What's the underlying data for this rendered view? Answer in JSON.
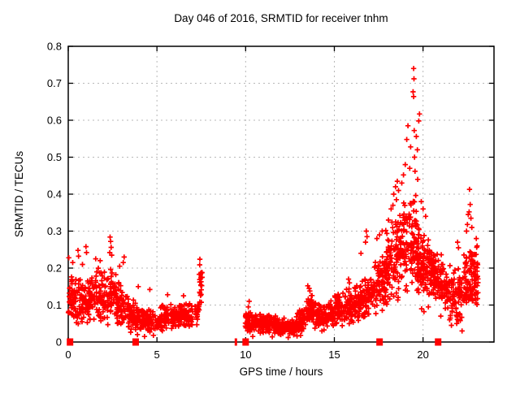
{
  "window": {
    "background": "#ffffff"
  },
  "chart_data": {
    "type": "scatter",
    "title": "Day 046 of 2016, SRMTID for receiver tnhm",
    "xlabel": "GPS time / hours",
    "ylabel": "SRMTID / TECUs",
    "xlim": [
      0,
      24
    ],
    "ylim": [
      0,
      0.8
    ],
    "xticks": [
      0,
      5,
      10,
      15,
      20
    ],
    "yticks": [
      0,
      0.1,
      0.2,
      0.3,
      0.4,
      0.5,
      0.6,
      0.7,
      0.8
    ],
    "grid": true,
    "grid_style": "dashed",
    "grid_color": "#b8b8b8",
    "legend": "none",
    "marker": "plus",
    "point_color": "#ff0000",
    "axis_color": "#000000",
    "seed": 1337,
    "segments_format": [
      "x_start_hours",
      "x_end_hours",
      "n_points",
      "band_center_start",
      "band_center_end",
      "band_halfwidth_start",
      "band_halfwidth_end"
    ],
    "segments": [
      [
        0.0,
        0.5,
        55,
        0.125,
        0.12,
        0.075,
        0.075
      ],
      [
        0.5,
        1.2,
        75,
        0.115,
        0.115,
        0.075,
        0.075
      ],
      [
        1.2,
        2.1,
        95,
        0.12,
        0.125,
        0.08,
        0.085
      ],
      [
        2.1,
        2.7,
        60,
        0.13,
        0.12,
        0.09,
        0.08
      ],
      [
        2.7,
        3.4,
        75,
        0.105,
        0.09,
        0.065,
        0.06
      ],
      [
        3.4,
        4.1,
        70,
        0.075,
        0.06,
        0.05,
        0.04
      ],
      [
        4.1,
        5.1,
        95,
        0.06,
        0.06,
        0.035,
        0.035
      ],
      [
        5.1,
        6.2,
        100,
        0.065,
        0.07,
        0.04,
        0.04
      ],
      [
        6.2,
        7.1,
        85,
        0.07,
        0.075,
        0.04,
        0.04
      ],
      [
        7.1,
        7.38,
        25,
        0.075,
        0.08,
        0.035,
        0.04
      ],
      [
        7.38,
        7.55,
        22,
        0.17,
        0.17,
        0.075,
        0.075
      ],
      [
        9.98,
        10.7,
        70,
        0.055,
        0.055,
        0.035,
        0.03
      ],
      [
        10.7,
        11.7,
        110,
        0.052,
        0.048,
        0.03,
        0.028
      ],
      [
        11.7,
        12.8,
        115,
        0.042,
        0.04,
        0.025,
        0.024
      ],
      [
        12.8,
        13.4,
        60,
        0.05,
        0.07,
        0.03,
        0.04
      ],
      [
        13.4,
        14.0,
        70,
        0.09,
        0.08,
        0.05,
        0.045
      ],
      [
        14.0,
        15.0,
        100,
        0.07,
        0.075,
        0.04,
        0.04
      ],
      [
        15.0,
        16.1,
        115,
        0.085,
        0.1,
        0.05,
        0.055
      ],
      [
        16.1,
        17.1,
        110,
        0.105,
        0.13,
        0.055,
        0.07
      ],
      [
        17.1,
        17.9,
        95,
        0.14,
        0.17,
        0.075,
        0.09
      ],
      [
        17.9,
        18.65,
        105,
        0.2,
        0.24,
        0.11,
        0.13
      ],
      [
        18.65,
        19.65,
        130,
        0.27,
        0.27,
        0.14,
        0.14
      ],
      [
        19.65,
        20.4,
        115,
        0.22,
        0.2,
        0.11,
        0.1
      ],
      [
        20.4,
        21.25,
        115,
        0.195,
        0.16,
        0.075,
        0.075
      ],
      [
        21.25,
        22.3,
        105,
        0.13,
        0.13,
        0.08,
        0.085
      ],
      [
        22.3,
        23.1,
        115,
        0.175,
        0.17,
        0.1,
        0.09
      ]
    ],
    "outlier_points": [
      [
        0.03,
        0.228
      ],
      [
        0.25,
        0.215
      ],
      [
        0.55,
        0.248
      ],
      [
        0.58,
        0.232
      ],
      [
        0.8,
        0.21
      ],
      [
        1.0,
        0.258
      ],
      [
        1.03,
        0.242
      ],
      [
        1.55,
        0.225
      ],
      [
        1.8,
        0.22
      ],
      [
        2.36,
        0.284
      ],
      [
        2.39,
        0.272
      ],
      [
        2.42,
        0.256
      ],
      [
        2.34,
        0.242
      ],
      [
        2.45,
        0.235
      ],
      [
        2.9,
        0.205
      ],
      [
        3.1,
        0.215
      ],
      [
        3.15,
        0.23
      ],
      [
        3.95,
        0.15
      ],
      [
        4.6,
        0.142
      ],
      [
        5.6,
        0.128
      ],
      [
        6.5,
        0.125
      ],
      [
        3.9,
        0.02
      ],
      [
        4.3,
        0.015
      ],
      [
        4.8,
        0.018
      ],
      [
        10.15,
        0.095
      ],
      [
        10.2,
        0.11
      ],
      [
        10.4,
        0.015
      ],
      [
        11.5,
        0.014
      ],
      [
        12.4,
        0.012
      ],
      [
        12.9,
        0.016
      ],
      [
        13.1,
        0.018
      ],
      [
        14.3,
        0.03
      ],
      [
        13.5,
        0.152
      ],
      [
        13.58,
        0.145
      ],
      [
        13.62,
        0.138
      ],
      [
        15.8,
        0.17
      ],
      [
        15.85,
        0.16
      ],
      [
        16.5,
        0.24
      ],
      [
        16.76,
        0.27
      ],
      [
        16.8,
        0.3
      ],
      [
        16.84,
        0.285
      ],
      [
        17.4,
        0.28
      ],
      [
        17.55,
        0.29
      ],
      [
        17.7,
        0.3
      ],
      [
        18.05,
        0.33
      ],
      [
        18.2,
        0.36
      ],
      [
        18.3,
        0.37
      ],
      [
        18.35,
        0.4
      ],
      [
        18.45,
        0.42
      ],
      [
        18.5,
        0.385
      ],
      [
        18.55,
        0.435
      ],
      [
        18.62,
        0.41
      ],
      [
        18.8,
        0.43
      ],
      [
        18.9,
        0.452
      ],
      [
        19.0,
        0.48
      ],
      [
        19.25,
        0.47
      ],
      [
        19.55,
        0.462
      ],
      [
        19.7,
        0.44
      ],
      [
        19.08,
        0.548
      ],
      [
        19.15,
        0.585
      ],
      [
        19.3,
        0.528
      ],
      [
        19.44,
        0.677
      ],
      [
        19.47,
        0.74
      ],
      [
        19.49,
        0.712
      ],
      [
        19.47,
        0.664
      ],
      [
        19.5,
        0.572
      ],
      [
        19.52,
        0.5
      ],
      [
        19.62,
        0.556
      ],
      [
        19.68,
        0.52
      ],
      [
        19.76,
        0.598
      ],
      [
        19.8,
        0.617
      ],
      [
        19.9,
        0.38
      ],
      [
        20.0,
        0.36
      ],
      [
        20.15,
        0.34
      ],
      [
        19.92,
        0.09
      ],
      [
        20.05,
        0.082
      ],
      [
        20.3,
        0.095
      ],
      [
        21.0,
        0.07
      ],
      [
        21.5,
        0.06
      ],
      [
        21.6,
        0.045
      ],
      [
        21.9,
        0.05
      ],
      [
        22.1,
        0.058
      ],
      [
        22.2,
        0.03
      ],
      [
        21.05,
        0.21
      ],
      [
        21.1,
        0.195
      ],
      [
        21.95,
        0.27
      ],
      [
        22.0,
        0.255
      ],
      [
        22.45,
        0.3
      ],
      [
        22.5,
        0.318
      ],
      [
        22.55,
        0.345
      ],
      [
        22.6,
        0.352
      ],
      [
        22.62,
        0.413
      ],
      [
        22.66,
        0.372
      ],
      [
        22.7,
        0.335
      ],
      [
        22.75,
        0.31
      ],
      [
        23.0,
        0.28
      ],
      [
        23.05,
        0.26
      ]
    ],
    "baseline_markers_format": [
      "x_hours",
      "width_px"
    ],
    "baseline_markers": [
      [
        0.1,
        8
      ],
      [
        3.8,
        8
      ],
      [
        9.45,
        3
      ],
      [
        10.0,
        8
      ],
      [
        17.55,
        8
      ],
      [
        20.85,
        8
      ]
    ]
  }
}
